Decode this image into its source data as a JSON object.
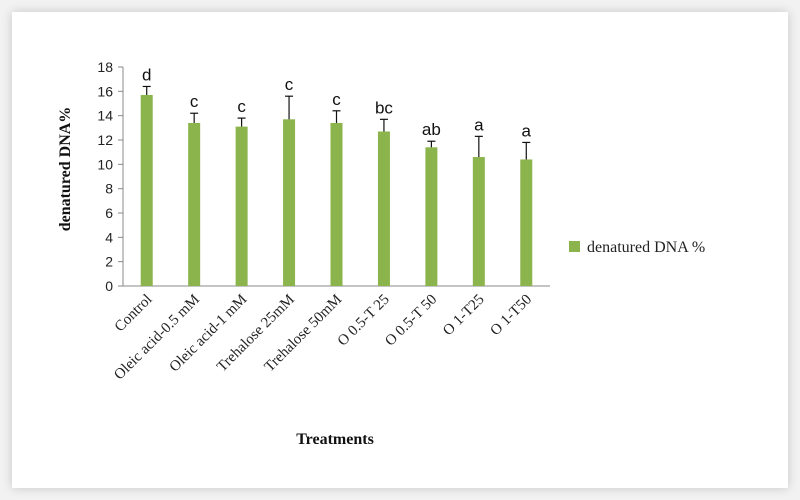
{
  "chart_data": {
    "type": "bar",
    "xlabel": "Treatments",
    "ylabel": "denatured DNA%",
    "ylim": [
      0,
      18
    ],
    "yticks": [
      0,
      2,
      4,
      6,
      8,
      10,
      12,
      14,
      16,
      18
    ],
    "grid": false,
    "legend": "right",
    "bar_color": "#8cb44c",
    "categories": [
      "Control",
      "Oleic acid-0.5 mM",
      "Oleic acid-1 mM",
      "Trehalose 25mM",
      "Trehalose 50mM",
      "O 0.5-T 25",
      "O 0.5-T 50",
      "O 1-T25",
      "O 1-T50"
    ],
    "series": [
      {
        "name": "denatured DNA %",
        "values": [
          15.7,
          13.4,
          13.1,
          13.7,
          13.4,
          12.7,
          11.4,
          10.6,
          10.4
        ],
        "errors": [
          0.7,
          0.8,
          0.7,
          1.9,
          1.0,
          1.0,
          0.5,
          1.7,
          1.4
        ],
        "significance": [
          "d",
          "c",
          "c",
          "c",
          "c",
          "bc",
          "ab",
          "a",
          "a"
        ]
      }
    ]
  }
}
